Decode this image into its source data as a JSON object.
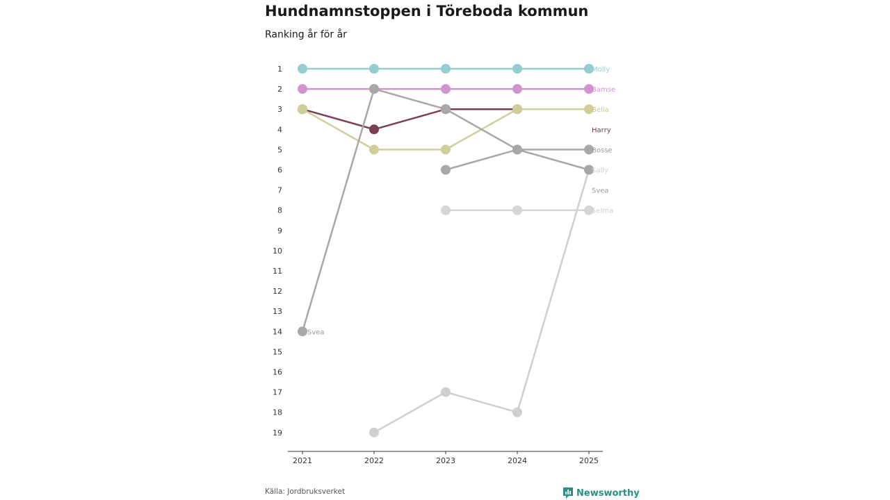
{
  "chart_data": {
    "type": "line",
    "title": "Hundnamnstoppen i Töreboda kommun",
    "subtitle": "Ranking år för år",
    "x": [
      "2021",
      "2022",
      "2023",
      "2024",
      "2025"
    ],
    "y_ticks": [
      "1",
      "2",
      "3",
      "4",
      "5",
      "6",
      "7",
      "8",
      "9",
      "10",
      "11",
      "12",
      "13",
      "14",
      "15",
      "16",
      "17",
      "18",
      "19"
    ],
    "ylim": [
      1,
      19
    ],
    "y_inverted": true,
    "grid": false,
    "series": [
      {
        "name": "Molly",
        "color": "#95cdd0",
        "values": [
          1,
          1,
          1,
          1,
          1
        ]
      },
      {
        "name": "Bamse",
        "color": "#cf95cf",
        "values": [
          2,
          2,
          2,
          2,
          2
        ]
      },
      {
        "name": "Harry",
        "color": "#7a3e55",
        "values": [
          3,
          4,
          3,
          3,
          null
        ]
      },
      {
        "name": "Bella",
        "color": "#d0cf9a",
        "values": [
          3,
          5,
          5,
          3,
          3
        ]
      },
      {
        "name": "Bosse",
        "color": "#a8a8a8",
        "values": [
          null,
          2,
          3,
          5,
          5
        ]
      },
      {
        "name": "Sally",
        "color": "#cfcfcf",
        "values": [
          null,
          19,
          17,
          18,
          6
        ]
      },
      {
        "name": "Svea",
        "color": "#a8a8a8",
        "values": [
          14,
          2,
          null,
          null,
          null
        ]
      },
      {
        "name": "Selma",
        "color": "#d6d6d6",
        "values": [
          null,
          null,
          8,
          8,
          8
        ]
      },
      {
        "name": "",
        "color": "#a8a8a8",
        "values": [
          null,
          null,
          6,
          5,
          6
        ]
      }
    ],
    "end_labels": [
      {
        "name": "Molly",
        "rank": 1,
        "color": "#95cdd0"
      },
      {
        "name": "Bamse",
        "rank": 2,
        "color": "#cf95cf"
      },
      {
        "name": "Bella",
        "rank": 3,
        "color": "#c9c88f"
      },
      {
        "name": "Harry",
        "rank": 4,
        "color": "#7a3e55"
      },
      {
        "name": "Bosse",
        "rank": 5,
        "color": "#9a9a9a"
      },
      {
        "name": "Sally",
        "rank": 6,
        "color": "#cfcfcf"
      },
      {
        "name": "Svea",
        "rank": 7,
        "color": "#9a9a9a"
      },
      {
        "name": "Selma",
        "rank": 8,
        "color": "#d0d0d0"
      }
    ],
    "point_labels": [
      {
        "name": "Svea",
        "x": "2021",
        "rank": 14,
        "color": "#9a9a9a"
      }
    ]
  },
  "footer": {
    "source": "Källa: Jordbruksverket",
    "brand": "Newsworthy",
    "brand_color": "#2a8f86"
  }
}
